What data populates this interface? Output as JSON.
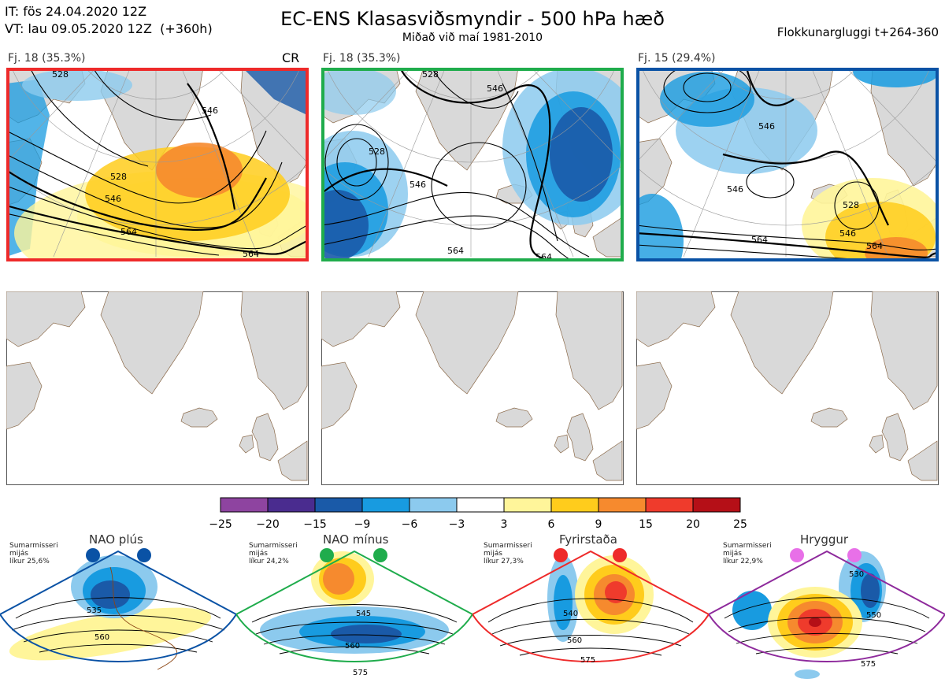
{
  "header": {
    "it": "IT: fös 24.04.2020 12Z",
    "vt": "VT: lau 09.05.2020 12Z",
    "vt_offset": "(+360h)",
    "title": "EC-ENS Klasasviðsmyndir - 500 hPa hæð",
    "subtitle": "Miðað við maí 1981-2010",
    "window": "Flokkunargluggi t+264-360"
  },
  "panels": [
    {
      "label": "Fj. 18 (35.3%)",
      "badge": "CR",
      "frame_color": "#ee2a2a",
      "contours": [
        "546",
        "528",
        "546",
        "564",
        "564",
        "528"
      ]
    },
    {
      "label": "Fj. 18 (35.3%)",
      "badge": "",
      "frame_color": "#1fac4c",
      "contours": [
        "528",
        "546",
        "546",
        "528",
        "564",
        "564"
      ]
    },
    {
      "label": "Fj. 15 (29.4%)",
      "badge": "",
      "frame_color": "#0a52a5",
      "contours": [
        "546",
        "546",
        "528",
        "546",
        "564",
        "564"
      ]
    }
  ],
  "colorbar": {
    "ticks": [
      "−25",
      "−20",
      "−15",
      "−9",
      "−6",
      "−3",
      "3",
      "6",
      "9",
      "15",
      "20",
      "25"
    ],
    "colors": [
      "#8e44a0",
      "#4a2c8f",
      "#1a5aa8",
      "#189be0",
      "#8ccaee",
      "#ffffff",
      "#fff59a",
      "#ffcc1c",
      "#f68a2e",
      "#ef3b2c",
      "#b50f17"
    ]
  },
  "regimes": [
    {
      "name": "NAO plús",
      "line1": "Sumarmisseri",
      "line2": "mijás",
      "line3": "líkur 25,6%",
      "color": "#0a52a5",
      "labels": [
        "535",
        "560"
      ]
    },
    {
      "name": "NAO mínus",
      "line1": "Sumarmisseri",
      "line2": "mijás",
      "line3": "líkur 24,2%",
      "color": "#1fac4c",
      "labels": [
        "545",
        "560",
        "575"
      ]
    },
    {
      "name": "Fyrirstaða",
      "line1": "Sumarmisseri",
      "line2": "mijás",
      "line3": "líkur 27,3%",
      "color": "#ee2a2a",
      "labels": [
        "540",
        "560",
        "575"
      ]
    },
    {
      "name": "Hryggur",
      "line1": "Sumarmisseri",
      "line2": "mijás",
      "line3": "líkur 22,9%",
      "color": "#8e2a9c",
      "labels": [
        "530",
        "550",
        "575"
      ]
    }
  ]
}
